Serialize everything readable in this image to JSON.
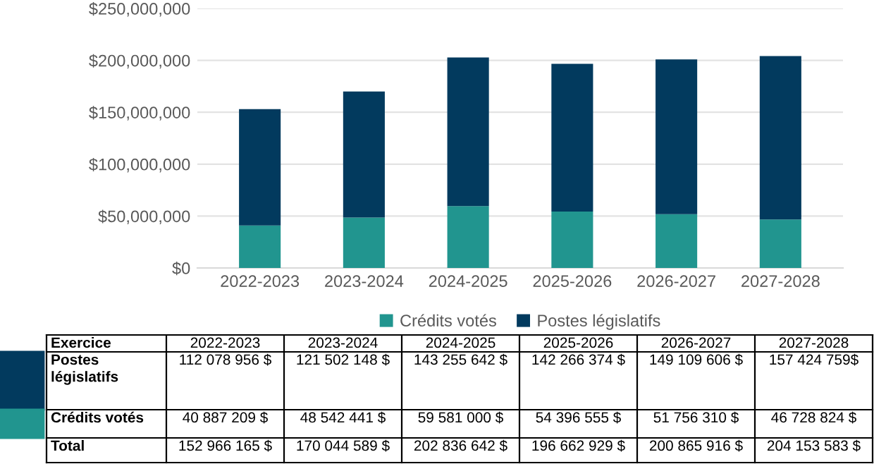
{
  "chart_data": {
    "type": "bar",
    "stacked": true,
    "categories": [
      "2022-2023",
      "2023-2024",
      "2024-2025",
      "2025-2026",
      "2026-2027",
      "2027-2028"
    ],
    "series": [
      {
        "name": "Crédits votés",
        "color": "#21958f",
        "values": [
          40887209,
          48542441,
          59581000,
          54396555,
          51756310,
          46728824
        ],
        "value_labels": [
          "40 887 209 $",
          "48 542 441 $",
          "59 581 000 $",
          "54 396 555 $",
          "51 756 310 $",
          "46 728 824 $"
        ]
      },
      {
        "name": "Postes législatifs",
        "color": "#023a5e",
        "values": [
          112078956,
          121502148,
          143255642,
          142266374,
          149109606,
          157424759
        ],
        "value_labels": [
          "112 078 956 $",
          "121 502 148 $",
          "143 255 642 $",
          "142 266 374 $",
          "149 109 606 $",
          "157 424 759$"
        ]
      }
    ],
    "annotations": [
      "Exercice",
      "Total",
      "152 966 165 $",
      "170 044 589 $",
      "202 836 642 $",
      "196 662 929 $",
      "200 865 916 $",
      "204 153 583 $"
    ],
    "ylim": [
      0,
      250000000
    ],
    "yticks": [
      {
        "value": 0,
        "label": "$0"
      },
      {
        "value": 50000000,
        "label": "$50,000,000"
      },
      {
        "value": 100000000,
        "label": "$100,000,000"
      },
      {
        "value": 150000000,
        "label": "$150,000,000"
      },
      {
        "value": 200000000,
        "label": "$200,000,000"
      },
      {
        "value": 250000000,
        "label": "$250,000,000"
      }
    ],
    "grid": "y",
    "legend": "bottom"
  }
}
